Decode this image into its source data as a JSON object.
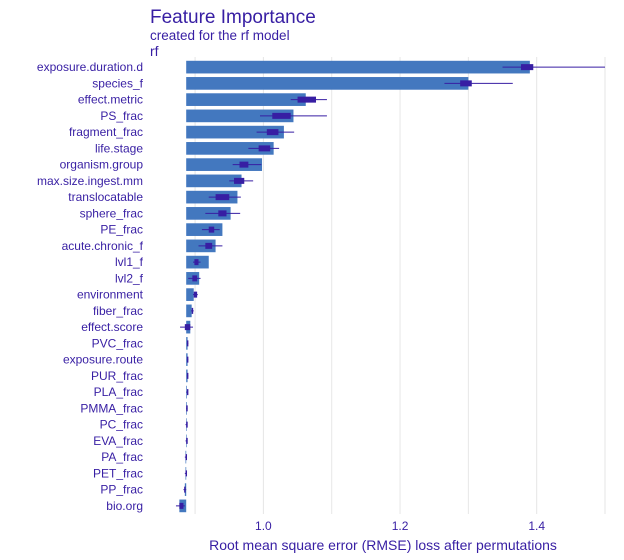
{
  "title": "Feature Importance",
  "subtitle": "created for the rf model",
  "panel_label": "rf",
  "colors": {
    "bar": "#4378bf",
    "box": "#371ea3",
    "text": "#371ea3",
    "grid": "#e6e6e6"
  },
  "chart_data": {
    "type": "bar",
    "orientation": "horizontal",
    "title": "Feature Importance",
    "subtitle": "created for the rf model",
    "xlabel": "Root mean square error (RMSE) loss after permutations",
    "baseline": 0.887,
    "xlim": [
      0.875,
      1.5
    ],
    "xticks": [
      1.0,
      1.2,
      1.4
    ],
    "grid": true,
    "features": [
      {
        "name": "exposure.duration.d",
        "value": 1.39,
        "min": 1.35,
        "q1": 1.377,
        "q3": 1.395,
        "max": 1.5
      },
      {
        "name": "species_f",
        "value": 1.3,
        "min": 1.265,
        "q1": 1.288,
        "q3": 1.305,
        "max": 1.365
      },
      {
        "name": "effect.metric",
        "value": 1.062,
        "min": 1.04,
        "q1": 1.05,
        "q3": 1.077,
        "max": 1.093
      },
      {
        "name": "PS_frac",
        "value": 1.044,
        "min": 0.995,
        "q1": 1.013,
        "q3": 1.04,
        "max": 1.093
      },
      {
        "name": "fragment_frac",
        "value": 1.03,
        "min": 0.99,
        "q1": 1.005,
        "q3": 1.022,
        "max": 1.045
      },
      {
        "name": "life.stage",
        "value": 1.015,
        "min": 0.978,
        "q1": 0.993,
        "q3": 1.01,
        "max": 1.023
      },
      {
        "name": "organism.group",
        "value": 0.998,
        "min": 0.955,
        "q1": 0.965,
        "q3": 0.978,
        "max": 0.997
      },
      {
        "name": "max.size.ingest.mm",
        "value": 0.968,
        "min": 0.95,
        "q1": 0.957,
        "q3": 0.972,
        "max": 0.985
      },
      {
        "name": "translocatable",
        "value": 0.962,
        "min": 0.92,
        "q1": 0.93,
        "q3": 0.95,
        "max": 0.967
      },
      {
        "name": "sphere_frac",
        "value": 0.952,
        "min": 0.915,
        "q1": 0.934,
        "q3": 0.946,
        "max": 0.966
      },
      {
        "name": "PE_frac",
        "value": 0.94,
        "min": 0.91,
        "q1": 0.92,
        "q3": 0.928,
        "max": 0.936
      },
      {
        "name": "acute.chronic_f",
        "value": 0.93,
        "min": 0.905,
        "q1": 0.915,
        "q3": 0.925,
        "max": 0.94
      },
      {
        "name": "lvl1_f",
        "value": 0.92,
        "min": 0.897,
        "q1": 0.899,
        "q3": 0.905,
        "max": 0.908
      },
      {
        "name": "lvl2_f",
        "value": 0.906,
        "min": 0.89,
        "q1": 0.896,
        "q3": 0.903,
        "max": 0.908
      },
      {
        "name": "environment",
        "value": 0.898,
        "min": 0.897,
        "q1": 0.898,
        "q3": 0.903,
        "max": 0.904
      },
      {
        "name": "fiber_frac",
        "value": 0.895,
        "min": 0.894,
        "q1": 0.895,
        "q3": 0.897,
        "max": 0.898
      },
      {
        "name": "effect.score",
        "value": 0.893,
        "min": 0.878,
        "q1": 0.885,
        "q3": 0.893,
        "max": 0.897
      },
      {
        "name": "PVC_frac",
        "value": 0.889,
        "min": 0.888,
        "q1": 0.888,
        "q3": 0.889,
        "max": 0.89
      },
      {
        "name": "exposure.route",
        "value": 0.889,
        "min": 0.888,
        "q1": 0.888,
        "q3": 0.889,
        "max": 0.89
      },
      {
        "name": "PUR_frac",
        "value": 0.889,
        "min": 0.888,
        "q1": 0.888,
        "q3": 0.889,
        "max": 0.89
      },
      {
        "name": "PLA_frac",
        "value": 0.888,
        "min": 0.887,
        "q1": 0.888,
        "q3": 0.889,
        "max": 0.889
      },
      {
        "name": "PMMA_frac",
        "value": 0.888,
        "min": 0.887,
        "q1": 0.887,
        "q3": 0.888,
        "max": 0.889
      },
      {
        "name": "PC_frac",
        "value": 0.887,
        "min": 0.886,
        "q1": 0.887,
        "q3": 0.888,
        "max": 0.888
      },
      {
        "name": "EVA_frac",
        "value": 0.887,
        "min": 0.886,
        "q1": 0.887,
        "q3": 0.888,
        "max": 0.888
      },
      {
        "name": "PA_frac",
        "value": 0.886,
        "min": 0.885,
        "q1": 0.886,
        "q3": 0.887,
        "max": 0.887
      },
      {
        "name": "PET_frac",
        "value": 0.886,
        "min": 0.885,
        "q1": 0.886,
        "q3": 0.887,
        "max": 0.887
      },
      {
        "name": "PP_frac",
        "value": 0.885,
        "min": 0.883,
        "q1": 0.884,
        "q3": 0.886,
        "max": 0.887
      },
      {
        "name": "bio.org",
        "value": 0.877,
        "min": 0.872,
        "q1": 0.877,
        "q3": 0.883,
        "max": 0.885
      }
    ]
  }
}
